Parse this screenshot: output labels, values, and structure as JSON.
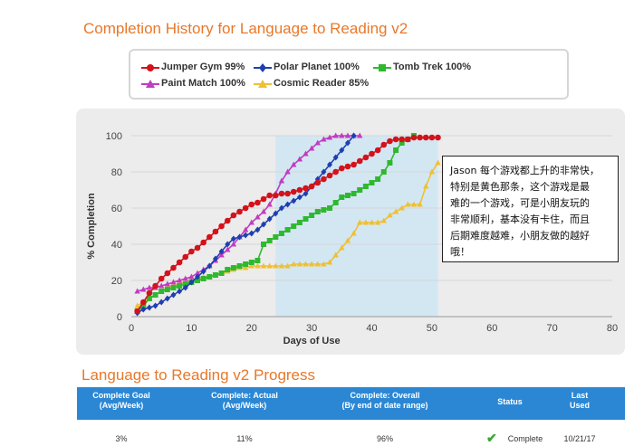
{
  "chart_data": {
    "type": "line",
    "title": "Completion History for Language to Reading v2",
    "xlabel": "Days of Use",
    "ylabel": "% Completion",
    "xlim": [
      0,
      80
    ],
    "ylim": [
      0,
      100
    ],
    "xticks": [
      0,
      10,
      20,
      30,
      40,
      50,
      60,
      70,
      80
    ],
    "yticks": [
      0,
      20,
      40,
      60,
      80,
      100
    ],
    "highlight_range": [
      24,
      51
    ],
    "series": [
      {
        "name": "Jumper Gym 99%",
        "color": "#d4121b",
        "marker": "circle",
        "x": [
          1,
          2,
          3,
          4,
          5,
          6,
          7,
          8,
          9,
          10,
          11,
          12,
          13,
          14,
          15,
          16,
          17,
          18,
          19,
          20,
          21,
          22,
          23,
          24,
          25,
          26,
          27,
          28,
          29,
          30,
          31,
          32,
          33,
          34,
          35,
          36,
          37,
          38,
          39,
          40,
          41,
          42,
          43,
          44,
          45,
          46,
          47,
          48,
          49,
          50,
          51
        ],
        "y": [
          3,
          8,
          13,
          17,
          21,
          24,
          27,
          30,
          33,
          36,
          38,
          41,
          44,
          47,
          50,
          53,
          56,
          58,
          60,
          62,
          63,
          65,
          67,
          67,
          68,
          68,
          69,
          70,
          71,
          72,
          74,
          76,
          78,
          80,
          82,
          83,
          84,
          86,
          88,
          90,
          92,
          95,
          97,
          98,
          98,
          98,
          99,
          99,
          99,
          99,
          99
        ]
      },
      {
        "name": "Polar Planet 100%",
        "color": "#1f3fb0",
        "marker": "diamond",
        "x": [
          1,
          2,
          3,
          4,
          5,
          6,
          7,
          8,
          9,
          10,
          11,
          12,
          13,
          14,
          15,
          16,
          17,
          18,
          19,
          20,
          21,
          22,
          23,
          24,
          25,
          26,
          27,
          28,
          29,
          30,
          31,
          32,
          33,
          34,
          35,
          36,
          37
        ],
        "y": [
          2,
          4,
          5,
          6,
          8,
          10,
          12,
          14,
          16,
          19,
          22,
          25,
          28,
          32,
          36,
          40,
          43,
          44,
          45,
          46,
          48,
          51,
          54,
          57,
          60,
          62,
          64,
          66,
          68,
          72,
          76,
          80,
          84,
          88,
          92,
          96,
          100
        ]
      },
      {
        "name": "Tomb Trek 100%",
        "color": "#2fb82f",
        "marker": "square",
        "x": [
          1,
          2,
          3,
          4,
          5,
          6,
          7,
          8,
          9,
          10,
          11,
          12,
          13,
          14,
          15,
          16,
          17,
          18,
          19,
          20,
          21,
          22,
          23,
          24,
          25,
          26,
          27,
          28,
          29,
          30,
          31,
          32,
          33,
          34,
          35,
          36,
          37,
          38,
          39,
          40,
          41,
          42,
          43,
          44,
          45,
          46,
          47
        ],
        "y": [
          3,
          6,
          10,
          12,
          14,
          15,
          16,
          17,
          18,
          19,
          20,
          21,
          22,
          23,
          24,
          26,
          27,
          28,
          29,
          30,
          31,
          40,
          42,
          44,
          46,
          48,
          50,
          52,
          54,
          56,
          58,
          59,
          60,
          63,
          66,
          67,
          68,
          70,
          72,
          74,
          76,
          80,
          85,
          92,
          96,
          98,
          100
        ]
      },
      {
        "name": "Paint Match 100%",
        "color": "#c23bc2",
        "marker": "triangle",
        "x": [
          1,
          2,
          3,
          4,
          5,
          6,
          7,
          8,
          9,
          10,
          11,
          12,
          13,
          14,
          15,
          16,
          17,
          18,
          19,
          20,
          21,
          22,
          23,
          24,
          25,
          26,
          27,
          28,
          29,
          30,
          31,
          32,
          33,
          34,
          35,
          36,
          37,
          38
        ],
        "y": [
          14,
          15,
          16,
          16,
          17,
          18,
          19,
          20,
          21,
          22,
          24,
          26,
          28,
          31,
          34,
          37,
          40,
          44,
          48,
          52,
          55,
          58,
          62,
          68,
          75,
          80,
          84,
          87,
          90,
          93,
          96,
          98,
          99,
          100,
          100,
          100,
          100,
          100
        ]
      },
      {
        "name": "Cosmic Reader 85%",
        "color": "#f0c030",
        "marker": "triangle",
        "x": [
          1,
          2,
          3,
          4,
          5,
          6,
          7,
          8,
          9,
          10,
          11,
          12,
          13,
          14,
          15,
          16,
          17,
          18,
          19,
          20,
          21,
          22,
          23,
          24,
          25,
          26,
          27,
          28,
          29,
          30,
          31,
          32,
          33,
          34,
          35,
          36,
          37,
          38,
          39,
          40,
          41,
          42,
          43,
          44,
          45,
          46,
          47,
          48,
          49,
          50,
          51
        ],
        "y": [
          6,
          8,
          10,
          12,
          14,
          16,
          17,
          18,
          19,
          20,
          21,
          22,
          22,
          23,
          24,
          25,
          26,
          27,
          27,
          28,
          28,
          28,
          28,
          28,
          28,
          28,
          29,
          29,
          29,
          29,
          29,
          29,
          30,
          34,
          38,
          42,
          46,
          52,
          52,
          52,
          52,
          53,
          56,
          58,
          60,
          62,
          62,
          62,
          72,
          80,
          85
        ]
      }
    ]
  },
  "legend_labels": [
    "Jumper Gym 99%",
    "Polar Planet 100%",
    "Tomb Trek 100%",
    "Paint Match 100%",
    "Cosmic Reader 85%"
  ],
  "annotation": {
    "lines": [
      "Jason 每个游戏都上升的非常快，",
      "特别是黄色那条，这个游戏是最",
      "难的一个游戏，可是小朋友玩的",
      "非常顺利，基本没有卡住，而且",
      "后期难度越难，小朋友做的越好",
      "哦！"
    ]
  },
  "progress": {
    "title": "Language to Reading v2 Progress",
    "header_color": "#2b87d4",
    "columns": [
      {
        "line1": "Complete Goal",
        "line2": "(Avg/Week)"
      },
      {
        "line1": "Complete: Actual",
        "line2": "(Avg/Week)"
      },
      {
        "line1": "Complete: Overall",
        "line2": "(By end of date range)"
      },
      {
        "line1": "Status",
        "line2": ""
      },
      {
        "line1": "Last",
        "line2": "Used"
      }
    ],
    "row": {
      "goal": "3%",
      "actual": "11%",
      "overall": "96%",
      "status": "Complete",
      "last_used": "10/21/17"
    }
  }
}
